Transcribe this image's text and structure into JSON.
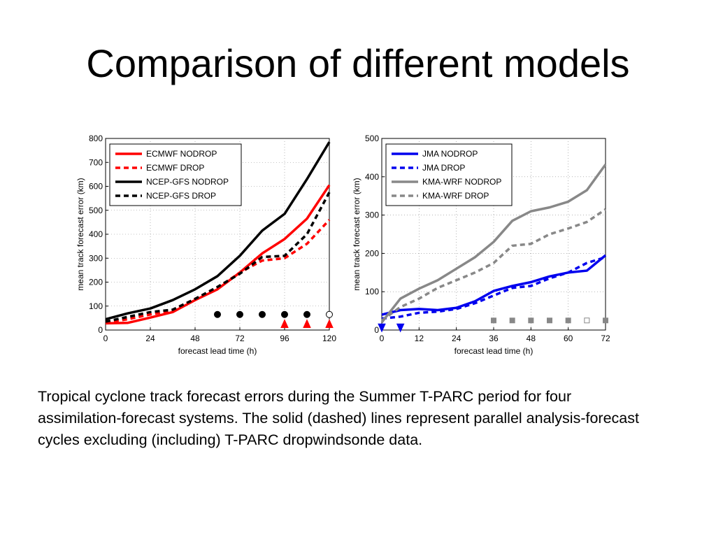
{
  "slide": {
    "title": "Comparison of different models",
    "caption": "Tropical cyclone track forecast errors during the Summer T-PARC period for four assimilation-forecast systems.  The solid (dashed) lines represent parallel analysis-forecast cycles excluding (including) T-PARC dropwindsonde data."
  },
  "chart_data": [
    {
      "type": "line",
      "title": "",
      "xlabel": "forecast lead time (h)",
      "ylabel": "mean track forecast error (km)",
      "xlim": [
        0,
        120
      ],
      "ylim": [
        0,
        800
      ],
      "xticks": [
        0,
        24,
        48,
        72,
        96,
        120
      ],
      "yticks": [
        0,
        100,
        200,
        300,
        400,
        500,
        600,
        700,
        800
      ],
      "grid": true,
      "legend_position": "top-left",
      "series": [
        {
          "name": "ECMWF NODROP",
          "color": "#ff0000",
          "dash": false,
          "x": [
            0,
            12,
            24,
            36,
            48,
            60,
            72,
            84,
            96,
            108,
            120
          ],
          "y": [
            28,
            30,
            52,
            75,
            125,
            170,
            240,
            320,
            380,
            465,
            605
          ]
        },
        {
          "name": "ECMWF DROP",
          "color": "#ff0000",
          "dash": true,
          "x": [
            0,
            12,
            24,
            36,
            48,
            60,
            72,
            84,
            96,
            108,
            120
          ],
          "y": [
            32,
            45,
            65,
            82,
            130,
            175,
            240,
            290,
            300,
            360,
            460
          ]
        },
        {
          "name": "NCEP-GFS NODROP",
          "color": "#000000",
          "dash": false,
          "x": [
            0,
            12,
            24,
            36,
            48,
            60,
            72,
            84,
            96,
            108,
            120
          ],
          "y": [
            45,
            70,
            90,
            125,
            170,
            225,
            310,
            415,
            485,
            630,
            785
          ]
        },
        {
          "name": "NCEP-GFS DROP",
          "color": "#000000",
          "dash": true,
          "x": [
            0,
            12,
            24,
            36,
            48,
            60,
            72,
            84,
            96,
            108,
            120
          ],
          "y": [
            35,
            55,
            75,
            85,
            130,
            180,
            235,
            305,
            310,
            400,
            575
          ]
        }
      ],
      "markers": [
        {
          "shape": "circle",
          "filled": true,
          "color": "#000000",
          "y": 65,
          "x": [
            60,
            72,
            84,
            96,
            108
          ]
        },
        {
          "shape": "circle",
          "filled": false,
          "color": "#000000",
          "y": 65,
          "x": [
            120
          ]
        },
        {
          "shape": "triangle-up",
          "filled": true,
          "color": "#ff0000",
          "y": 25,
          "x": [
            96,
            108,
            120
          ]
        }
      ]
    },
    {
      "type": "line",
      "title": "",
      "xlabel": "forecast lead time (h)",
      "ylabel": "mean track forecast error (km)",
      "xlim": [
        0,
        72
      ],
      "ylim": [
        0,
        500
      ],
      "xticks": [
        0,
        12,
        24,
        36,
        48,
        60,
        72
      ],
      "yticks": [
        0,
        100,
        200,
        300,
        400,
        500
      ],
      "grid": true,
      "legend_position": "top-left",
      "series": [
        {
          "name": "JMA NODROP",
          "color": "#0000ee",
          "dash": false,
          "x": [
            0,
            6,
            12,
            18,
            24,
            30,
            36,
            42,
            48,
            54,
            60,
            66,
            72
          ],
          "y": [
            40,
            52,
            55,
            52,
            58,
            75,
            102,
            115,
            125,
            140,
            150,
            155,
            195
          ]
        },
        {
          "name": "JMA DROP",
          "color": "#0000ee",
          "dash": true,
          "x": [
            0,
            6,
            12,
            18,
            24,
            30,
            36,
            42,
            48,
            54,
            60,
            66,
            72
          ],
          "y": [
            30,
            35,
            45,
            48,
            55,
            70,
            90,
            110,
            115,
            135,
            150,
            175,
            190
          ]
        },
        {
          "name": "KMA-WRF NODROP",
          "color": "#888888",
          "dash": false,
          "x": [
            0,
            6,
            12,
            18,
            24,
            30,
            36,
            42,
            48,
            54,
            60,
            66,
            72
          ],
          "y": [
            20,
            82,
            108,
            130,
            160,
            190,
            230,
            285,
            310,
            320,
            335,
            365,
            432
          ]
        },
        {
          "name": "KMA-WRF DROP",
          "color": "#888888",
          "dash": true,
          "x": [
            0,
            6,
            12,
            18,
            24,
            30,
            36,
            42,
            48,
            54,
            60,
            66,
            72
          ],
          "y": [
            25,
            60,
            82,
            110,
            130,
            150,
            175,
            220,
            225,
            250,
            265,
            282,
            315
          ]
        }
      ],
      "markers": [
        {
          "shape": "triangle-down",
          "filled": true,
          "color": "#0000ee",
          "y": 5,
          "x": [
            0,
            6
          ]
        },
        {
          "shape": "square",
          "filled": true,
          "color": "#888888",
          "y": 25,
          "x": [
            36,
            42,
            48,
            54,
            60,
            72
          ]
        },
        {
          "shape": "square",
          "filled": false,
          "color": "#888888",
          "y": 25,
          "x": [
            66
          ]
        }
      ]
    }
  ]
}
